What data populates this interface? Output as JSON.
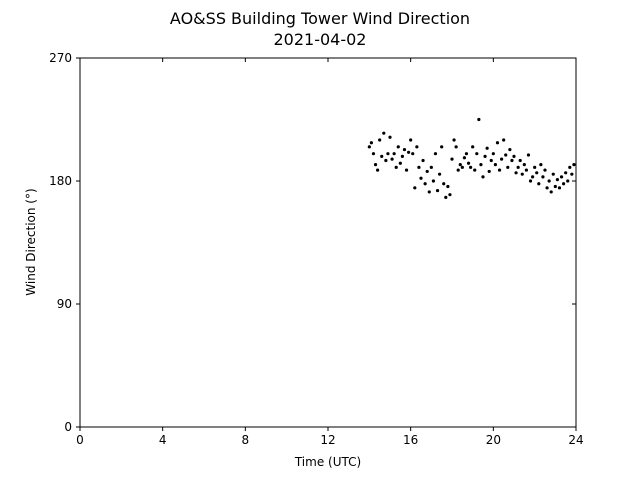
{
  "chart_data": {
    "type": "scatter",
    "title": "AO&SS Building Tower Wind Direction",
    "subtitle": "2021-04-02",
    "x_label": "Time (UTC)",
    "y_label": "Wind Direction (°)",
    "color": "#000000",
    "xlim": [
      0,
      24
    ],
    "xticks": [
      0,
      4,
      8,
      12,
      16,
      20,
      24
    ],
    "ylim": [
      0,
      270
    ],
    "yticks": [
      0,
      90,
      180,
      270
    ],
    "x": [
      14.0,
      14.1,
      14.2,
      14.3,
      14.4,
      14.5,
      14.6,
      14.7,
      14.8,
      14.9,
      15.0,
      15.1,
      15.2,
      15.3,
      15.4,
      15.5,
      15.6,
      15.7,
      15.8,
      15.9,
      16.0,
      16.1,
      16.2,
      16.3,
      16.4,
      16.5,
      16.6,
      16.7,
      16.8,
      16.9,
      17.0,
      17.1,
      17.2,
      17.3,
      17.4,
      17.5,
      17.6,
      17.7,
      17.8,
      17.9,
      18.0,
      18.1,
      18.2,
      18.3,
      18.4,
      18.5,
      18.6,
      18.7,
      18.8,
      18.9,
      19.0,
      19.1,
      19.2,
      19.3,
      19.4,
      19.5,
      19.6,
      19.7,
      19.8,
      19.9,
      20.0,
      20.1,
      20.2,
      20.3,
      20.4,
      20.5,
      20.6,
      20.7,
      20.8,
      20.9,
      21.0,
      21.1,
      21.2,
      21.3,
      21.4,
      21.5,
      21.6,
      21.7,
      21.8,
      21.9,
      22.0,
      22.1,
      22.2,
      22.3,
      22.4,
      22.5,
      22.6,
      22.7,
      22.8,
      22.9,
      23.0,
      23.1,
      23.2,
      23.3,
      23.4,
      23.5,
      23.6,
      23.7,
      23.8,
      23.9
    ],
    "values": [
      205,
      208,
      200,
      192,
      188,
      210,
      198,
      215,
      195,
      200,
      212,
      196,
      200,
      190,
      205,
      193,
      198,
      203,
      188,
      201,
      210,
      200,
      175,
      205,
      190,
      182,
      195,
      178,
      187,
      172,
      190,
      180,
      200,
      173,
      185,
      205,
      178,
      168,
      176,
      170,
      196,
      210,
      205,
      188,
      192,
      190,
      197,
      200,
      193,
      190,
      205,
      188,
      200,
      225,
      192,
      183,
      198,
      204,
      187,
      195,
      200,
      192,
      208,
      188,
      196,
      210,
      199,
      190,
      203,
      195,
      198,
      186,
      190,
      195,
      185,
      192,
      188,
      199,
      180,
      183,
      190,
      186,
      178,
      192,
      183,
      188,
      175,
      180,
      172,
      185,
      176,
      181,
      175,
      183,
      178,
      186,
      180,
      190,
      185,
      192
    ]
  }
}
